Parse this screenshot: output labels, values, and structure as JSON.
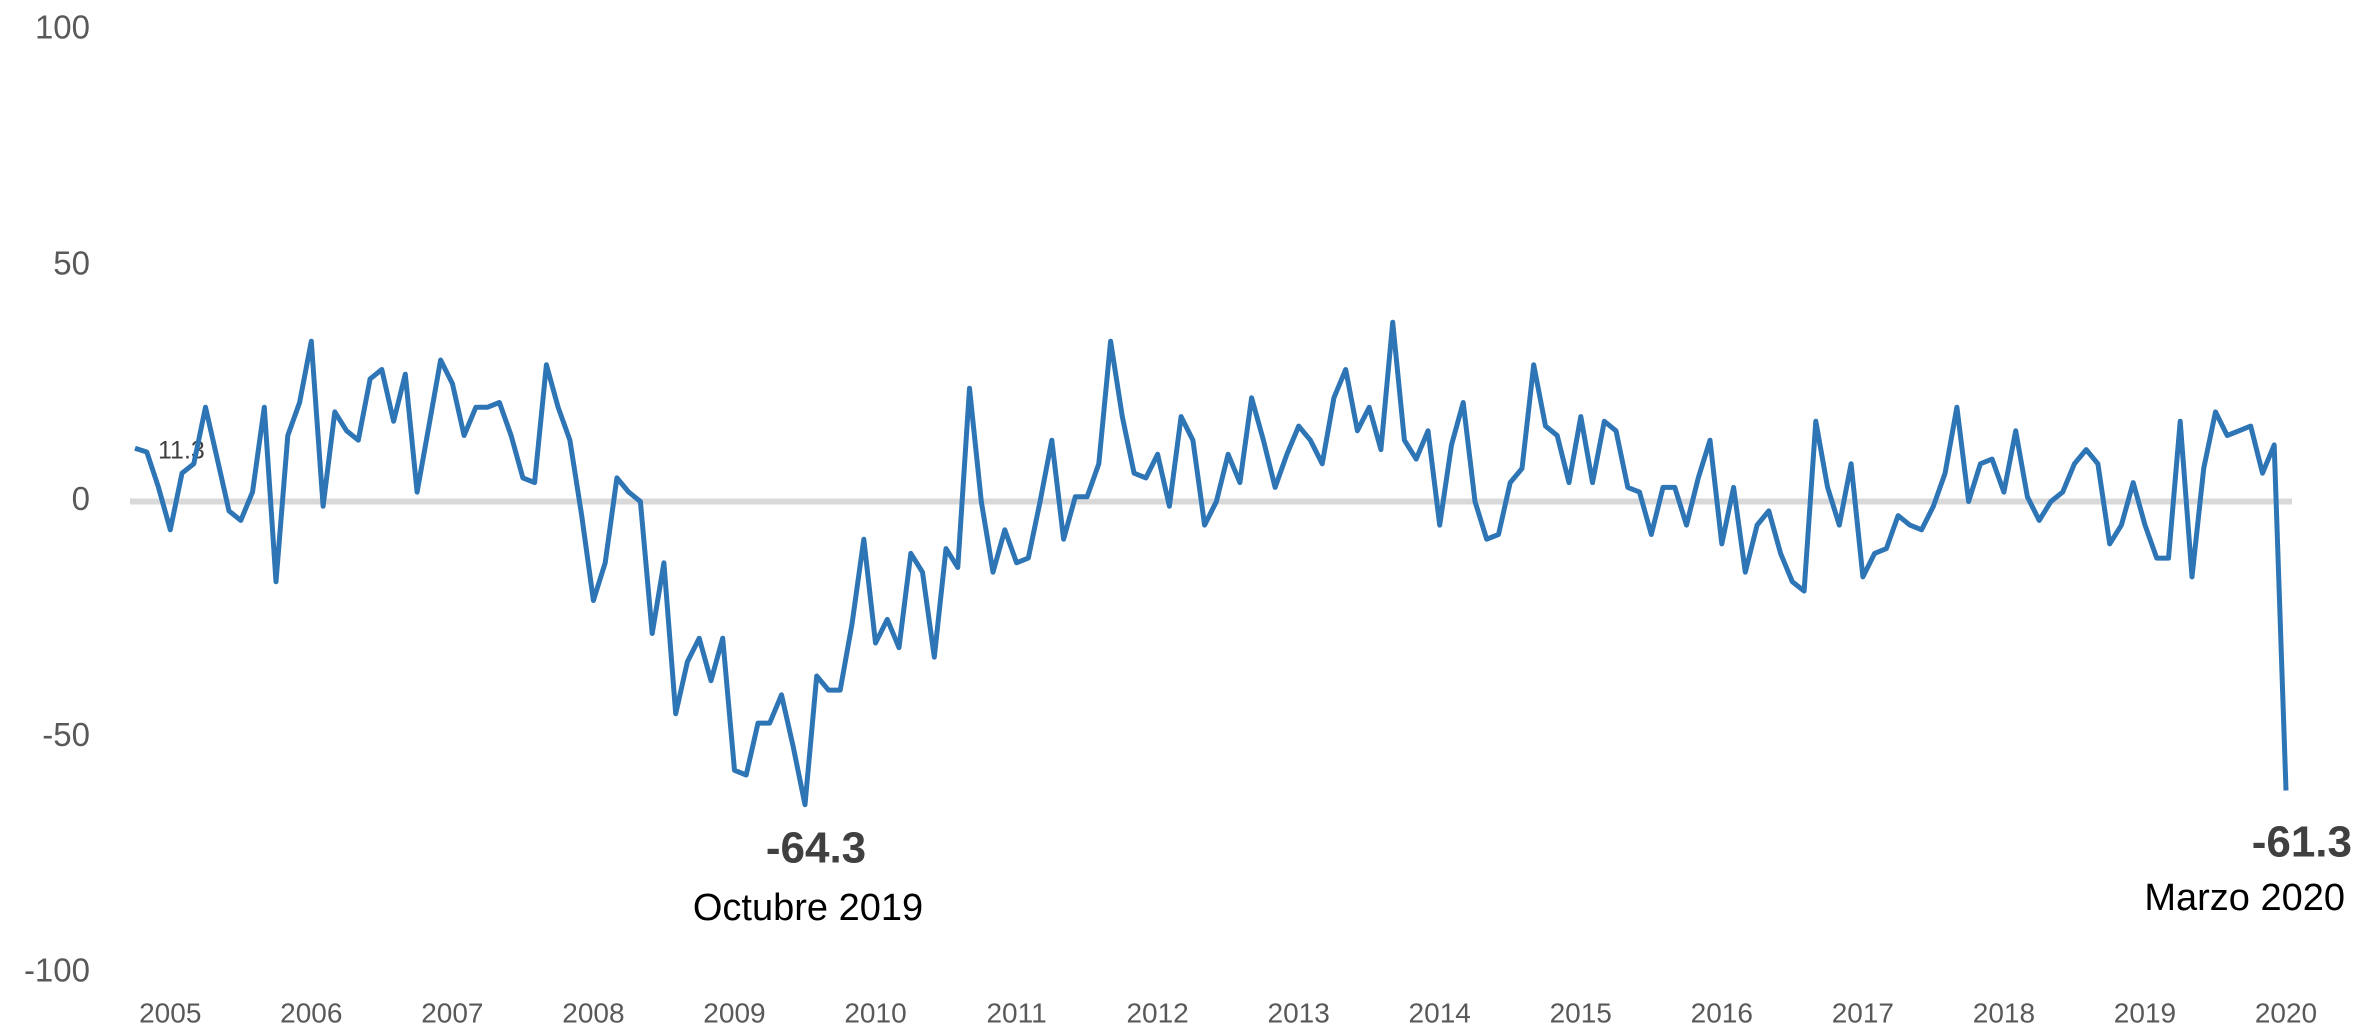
{
  "chart_data": {
    "type": "line",
    "categories": [
      null,
      null,
      null,
      "2005",
      null,
      null,
      null,
      null,
      null,
      null,
      null,
      null,
      null,
      null,
      null,
      "2006",
      null,
      null,
      null,
      null,
      null,
      null,
      null,
      null,
      null,
      null,
      null,
      "2007",
      null,
      null,
      null,
      null,
      null,
      null,
      null,
      null,
      null,
      null,
      null,
      "2008",
      null,
      null,
      null,
      null,
      null,
      null,
      null,
      null,
      null,
      null,
      null,
      "2009",
      null,
      null,
      null,
      null,
      null,
      null,
      null,
      null,
      null,
      null,
      null,
      "2010",
      null,
      null,
      null,
      null,
      null,
      null,
      null,
      null,
      null,
      null,
      null,
      "2011",
      null,
      null,
      null,
      null,
      null,
      null,
      null,
      null,
      null,
      null,
      null,
      "2012",
      null,
      null,
      null,
      null,
      null,
      null,
      null,
      null,
      null,
      null,
      null,
      "2013",
      null,
      null,
      null,
      null,
      null,
      null,
      null,
      null,
      null,
      null,
      null,
      "2014",
      null,
      null,
      null,
      null,
      null,
      null,
      null,
      null,
      null,
      null,
      null,
      "2015",
      null,
      null,
      null,
      null,
      null,
      null,
      null,
      null,
      null,
      null,
      null,
      "2016",
      null,
      null,
      null,
      null,
      null,
      null,
      null,
      null,
      null,
      null,
      null,
      "2017",
      null,
      null,
      null,
      null,
      null,
      null,
      null,
      null,
      null,
      null,
      null,
      "2018",
      null,
      null,
      null,
      null,
      null,
      null,
      null,
      null,
      null,
      null,
      null,
      "2019",
      null,
      null,
      null,
      null,
      null,
      null,
      null,
      null,
      null,
      null,
      null,
      "2020"
    ],
    "values": [
      11.3,
      10.5,
      3,
      -6,
      6,
      8,
      20,
      9,
      -2,
      -4,
      2,
      20,
      -17,
      14,
      21,
      34,
      -1,
      19,
      15,
      13,
      26,
      28,
      17,
      27,
      2,
      16,
      30,
      25,
      14,
      20,
      20,
      21,
      14,
      5,
      4,
      29,
      20,
      13,
      -3,
      -21,
      -13,
      5,
      2,
      0,
      -28,
      -13,
      -45,
      -34,
      -29,
      -38,
      -29,
      -57,
      -58,
      -47,
      -47,
      -41,
      -52,
      -64.3,
      -37,
      -40,
      -40,
      -26,
      -8,
      -30,
      -25,
      -31,
      -11,
      -15,
      -33,
      -10,
      -14,
      24,
      0,
      -15,
      -6,
      -13,
      -12,
      0,
      13,
      -8,
      1,
      1,
      8,
      34,
      18,
      6,
      5,
      10,
      -1,
      18,
      13,
      -5,
      0,
      10,
      4,
      22,
      13,
      3,
      10,
      16,
      13,
      8,
      22,
      28,
      15,
      20,
      11,
      38,
      13,
      9,
      15,
      -5,
      12,
      21,
      0,
      -8,
      -7,
      4,
      7,
      29,
      16,
      14,
      4,
      18,
      4,
      17,
      15,
      3,
      2,
      -7,
      3,
      3,
      -5,
      5,
      13,
      -9,
      3,
      -15,
      -5,
      -2,
      -11,
      -17,
      -19,
      17,
      3,
      -5,
      8,
      -16,
      -11,
      -10,
      -3,
      -5,
      -6,
      -1,
      6,
      20,
      0,
      8,
      9,
      2,
      15,
      1,
      -4,
      0,
      2,
      8,
      11,
      8,
      -9,
      -5,
      4,
      -5,
      -12,
      -12,
      17,
      -16,
      7,
      19,
      14,
      15,
      16,
      6,
      12,
      -61.3
    ],
    "color": "#2e75b6",
    "ylim": [
      -100,
      100
    ],
    "yticks": [
      100,
      50,
      0,
      -50,
      -100
    ],
    "annotations": [
      {
        "text": "Octubre 2019"
      },
      {
        "text": "Marzo 2020"
      }
    ]
  }
}
